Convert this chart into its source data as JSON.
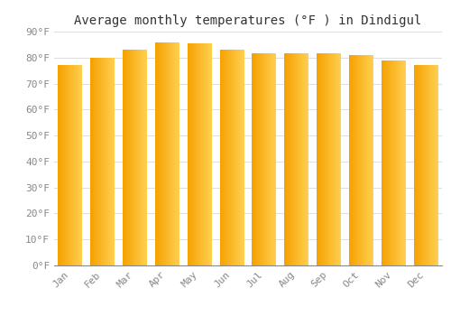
{
  "title": "Average monthly temperatures (°F ) in Dindigul",
  "months": [
    "Jan",
    "Feb",
    "Mar",
    "Apr",
    "May",
    "Jun",
    "Jul",
    "Aug",
    "Sep",
    "Oct",
    "Nov",
    "Dec"
  ],
  "values": [
    77,
    80,
    83,
    86,
    85.5,
    83,
    81.5,
    81.5,
    81.5,
    81,
    79,
    77
  ],
  "bar_color_left": "#F5A100",
  "bar_color_right": "#FFCF50",
  "background_color": "#FFFFFF",
  "grid_color": "#DDDDDD",
  "ylim": [
    0,
    90
  ],
  "yticks": [
    0,
    10,
    20,
    30,
    40,
    50,
    60,
    70,
    80,
    90
  ],
  "ytick_labels": [
    "0°F",
    "10°F",
    "20°F",
    "30°F",
    "40°F",
    "50°F",
    "60°F",
    "70°F",
    "80°F",
    "90°F"
  ],
  "title_fontsize": 10,
  "tick_fontsize": 8,
  "tick_font_color": "#888888",
  "title_font_color": "#333333",
  "bar_width": 0.75,
  "n_gradient_steps": 60
}
